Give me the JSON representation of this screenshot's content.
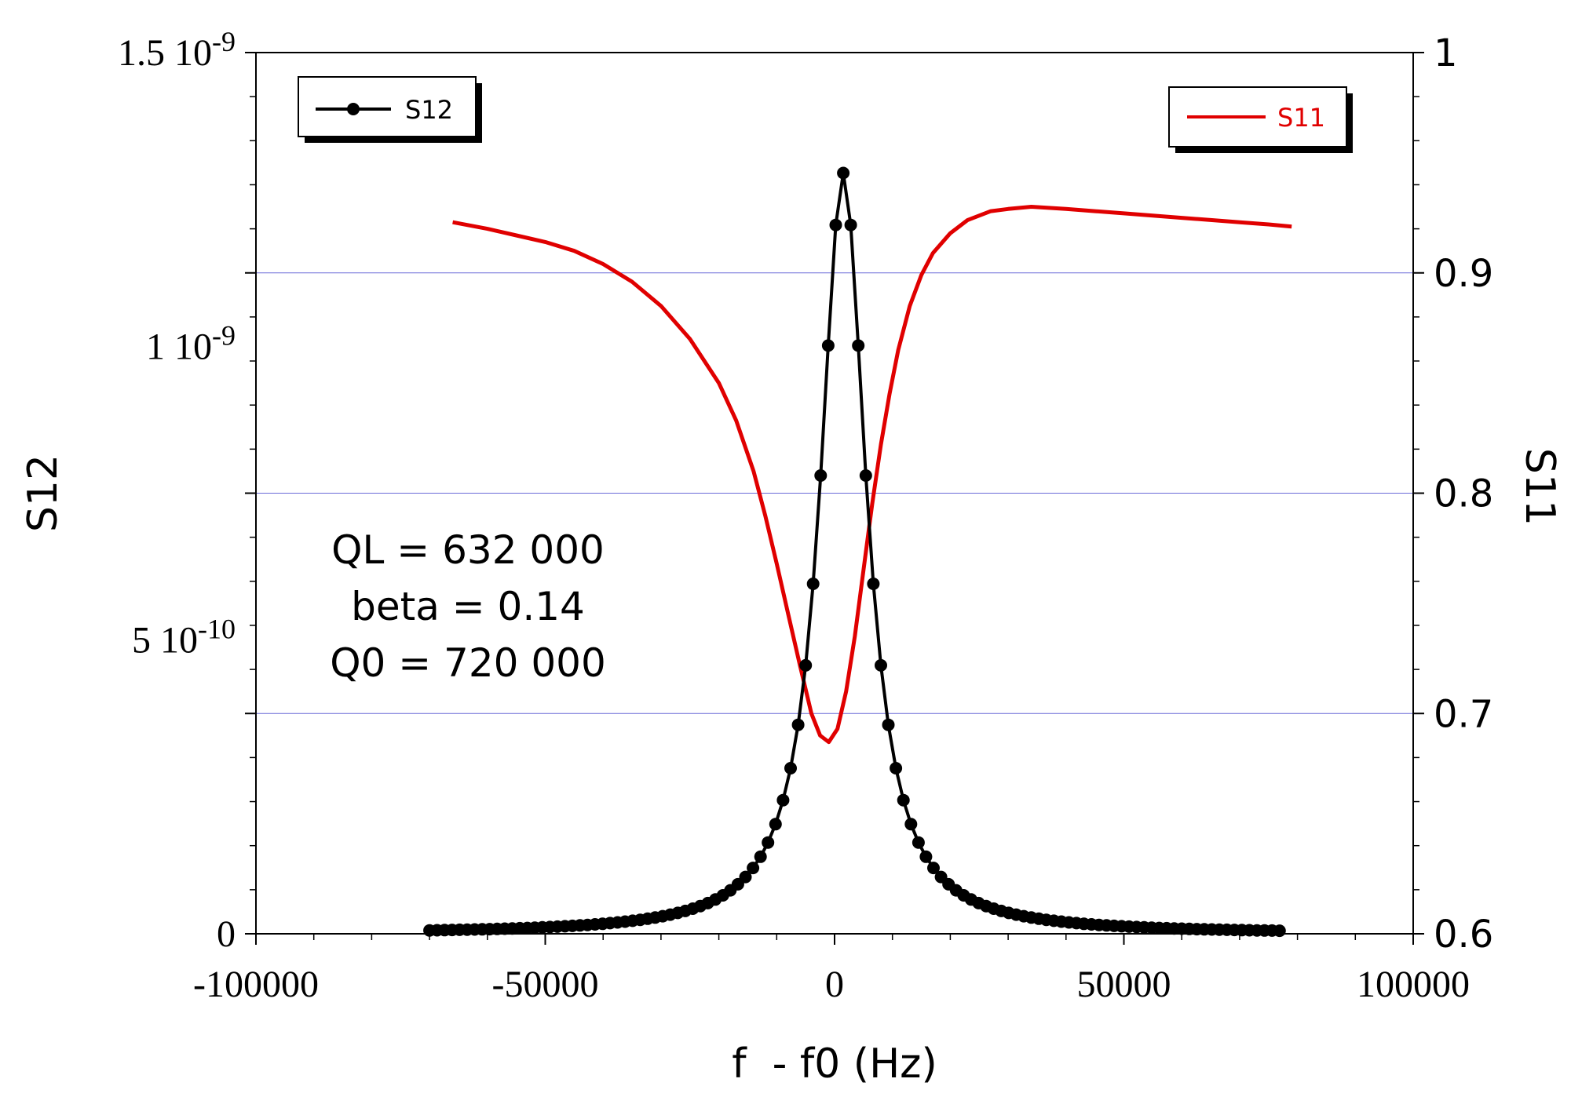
{
  "chart_data": {
    "type": "line",
    "title": "",
    "xlabel": "f  - f0 (Hz)",
    "ylabel_left": "S12",
    "ylabel_right": "S11",
    "xlim": [
      -100000,
      100000
    ],
    "ylim_left": [
      0,
      1.5e-09
    ],
    "ylim_right": [
      0.6,
      1.0
    ],
    "x_ticks": [
      {
        "value": -100000,
        "label": "-100000"
      },
      {
        "value": -50000,
        "label": "-50000"
      },
      {
        "value": 0,
        "label": "0"
      },
      {
        "value": 50000,
        "label": "50000"
      },
      {
        "value": 100000,
        "label": "100000"
      }
    ],
    "y_left_ticks": [
      {
        "value": 0,
        "mantissa": "0",
        "exp": ""
      },
      {
        "value": 5e-10,
        "mantissa": "5 10",
        "exp": "-10"
      },
      {
        "value": 1e-09,
        "mantissa": "1 10",
        "exp": "-9"
      },
      {
        "value": 1.5e-09,
        "mantissa": "1.5 10",
        "exp": "-9"
      }
    ],
    "y_right_ticks": [
      {
        "value": 0.6,
        "label": "0.6"
      },
      {
        "value": 0.7,
        "label": "0.7"
      },
      {
        "value": 0.8,
        "label": "0.8"
      },
      {
        "value": 0.9,
        "label": "0.9"
      },
      {
        "value": 1.0,
        "label": "1"
      }
    ],
    "grid": "horizontal lines at right-axis ticks",
    "series": [
      {
        "name": "S12",
        "axis": "left",
        "color": "#000000",
        "marker": "circle",
        "model": "lorentzian",
        "x_range": [
          -70000,
          78000
        ],
        "x_step": 1300,
        "center": 1500,
        "peak": 1.295e-09,
        "half_width": 4800
      },
      {
        "name": "S11",
        "axis": "right",
        "color": "#e00000",
        "marker": "none",
        "points": [
          [
            -66000,
            0.923
          ],
          [
            -60000,
            0.92
          ],
          [
            -55000,
            0.917
          ],
          [
            -50000,
            0.914
          ],
          [
            -45000,
            0.91
          ],
          [
            -40000,
            0.904
          ],
          [
            -35000,
            0.896
          ],
          [
            -30000,
            0.885
          ],
          [
            -25000,
            0.87
          ],
          [
            -20000,
            0.85
          ],
          [
            -17000,
            0.833
          ],
          [
            -14000,
            0.81
          ],
          [
            -12000,
            0.79
          ],
          [
            -10000,
            0.768
          ],
          [
            -8000,
            0.745
          ],
          [
            -6000,
            0.722
          ],
          [
            -4000,
            0.7
          ],
          [
            -2500,
            0.69
          ],
          [
            -1000,
            0.687
          ],
          [
            500,
            0.693
          ],
          [
            2000,
            0.71
          ],
          [
            3500,
            0.735
          ],
          [
            5000,
            0.765
          ],
          [
            6500,
            0.795
          ],
          [
            8000,
            0.822
          ],
          [
            9500,
            0.845
          ],
          [
            11000,
            0.865
          ],
          [
            13000,
            0.885
          ],
          [
            15000,
            0.899
          ],
          [
            17000,
            0.909
          ],
          [
            20000,
            0.918
          ],
          [
            23000,
            0.924
          ],
          [
            27000,
            0.928
          ],
          [
            30000,
            0.929
          ],
          [
            34000,
            0.93
          ],
          [
            40000,
            0.929
          ],
          [
            45000,
            0.928
          ],
          [
            50000,
            0.927
          ],
          [
            55000,
            0.926
          ],
          [
            60000,
            0.925
          ],
          [
            65000,
            0.924
          ],
          [
            70000,
            0.923
          ],
          [
            75000,
            0.922
          ],
          [
            79000,
            0.921
          ]
        ]
      }
    ],
    "legends": [
      {
        "series": "S12",
        "label": "S12",
        "placement": "top-left"
      },
      {
        "series": "S11",
        "label": "S11",
        "placement": "top-right"
      }
    ],
    "annotations": [
      "QL = 632 000",
      "beta = 0.14",
      "Q0 = 720 000"
    ]
  }
}
